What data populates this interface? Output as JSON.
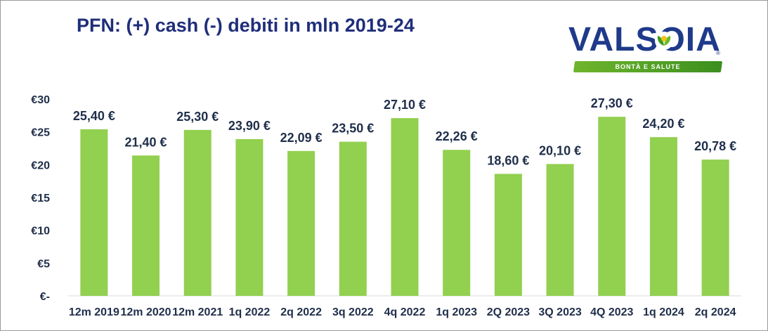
{
  "logo": {
    "wordmark": "VALSOIA",
    "tagline": "BONTÀ E SALUTE",
    "registered": "®",
    "colors": {
      "primary": "#1f3a8a",
      "band": "#5aa528"
    }
  },
  "chart_data": {
    "type": "bar",
    "title": "PFN: (+) cash (-) debiti in mln 2019-24",
    "xlabel": "",
    "ylabel": "",
    "categories": [
      "12m 2019",
      "12m 2020",
      "12m 2021",
      "1q 2022",
      "2q 2022",
      "3q 2022",
      "4q 2022",
      "1q 2023",
      "2Q 2023",
      "3Q 2023",
      "4Q 2023",
      "1q 2024",
      "2q 2024"
    ],
    "values": [
      25.4,
      21.4,
      25.3,
      23.9,
      22.09,
      23.5,
      27.1,
      22.26,
      18.6,
      20.1,
      27.3,
      24.2,
      20.78
    ],
    "data_labels": [
      "25,40 €",
      "21,40 €",
      "25,30 €",
      "23,90 €",
      "22,09 €",
      "23,50 €",
      "27,10 €",
      "22,26 €",
      "18,60 €",
      "20,10 €",
      "27,30 €",
      "24,20 €",
      "20,78 €"
    ],
    "ylim": [
      0,
      30
    ],
    "yticks": [
      0,
      5,
      10,
      15,
      20,
      25,
      30
    ],
    "ytick_labels": [
      "€-",
      "€5",
      "€10",
      "€15",
      "€20",
      "€25",
      "€30"
    ],
    "grid": false,
    "legend": "none",
    "bar_color": "#92d050",
    "text_color": "#1f2e4a",
    "title_color": "#1f2e7a"
  }
}
